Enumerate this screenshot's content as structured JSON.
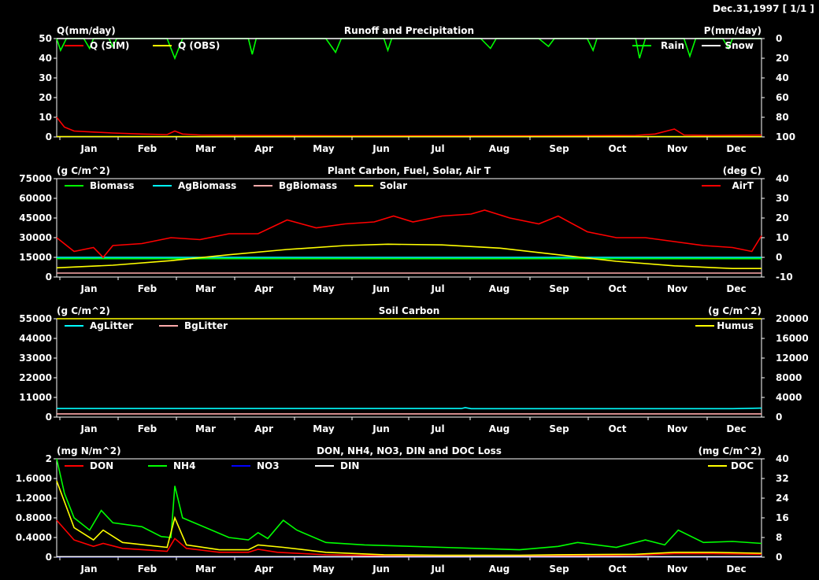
{
  "header": {
    "date_label": "Dec.31,1997 [ 1/1 ]"
  },
  "months": [
    "Jan",
    "Feb",
    "Mar",
    "Apr",
    "May",
    "Jun",
    "Jul",
    "Aug",
    "Sep",
    "Oct",
    "Nov",
    "Dec"
  ],
  "colors": {
    "background": "#000000",
    "frame": "#ffffff",
    "red": "#ff0000",
    "green": "#00ff00",
    "yellow": "#ffff00",
    "white": "#ffffff",
    "cyan": "#00ffff",
    "pink": "#ffaaaa",
    "blue": "#0000ff"
  },
  "chart_data": [
    {
      "type": "line",
      "title": "Runoff and Precipitation",
      "ylabel_left": "Q(mm/day)",
      "ylabel_right": "P(mm/day)",
      "ylim_left": [
        0,
        50
      ],
      "yticks_left": [
        "0",
        "10",
        "20",
        "30",
        "40",
        "50"
      ],
      "ylim_right": [
        100,
        0
      ],
      "yticks_right": [
        "100",
        "80",
        "60",
        "40",
        "20",
        "0"
      ],
      "right_axis_inverted": true,
      "series": [
        {
          "name": "Q (SIM)",
          "axis": "left",
          "color": "#ff0000",
          "points": [
            [
              1,
              10
            ],
            [
              5,
              5
            ],
            [
              10,
              3
            ],
            [
              20,
              2.5
            ],
            [
              30,
              2
            ],
            [
              45,
              1.5
            ],
            [
              58,
              1.2
            ],
            [
              62,
              3
            ],
            [
              66,
              1.5
            ],
            [
              75,
              1
            ],
            [
              100,
              0.8
            ],
            [
              150,
              0.6
            ],
            [
              200,
              0.6
            ],
            [
              250,
              0.6
            ],
            [
              280,
              0.7
            ],
            [
              300,
              0.8
            ],
            [
              310,
              1.5
            ],
            [
              320,
              4
            ],
            [
              325,
              1
            ],
            [
              340,
              0.8
            ],
            [
              365,
              1
            ]
          ]
        },
        {
          "name": "Q (OBS)",
          "axis": "left",
          "color": "#ffff00",
          "points": [
            [
              1,
              0.2
            ],
            [
              365,
              0.2
            ]
          ]
        },
        {
          "name": "Rain",
          "axis": "right",
          "color": "#00ff00",
          "points": [
            [
              1,
              0
            ],
            [
              3,
              12
            ],
            [
              6,
              0
            ],
            [
              15,
              0
            ],
            [
              18,
              10
            ],
            [
              20,
              0
            ],
            [
              28,
              0
            ],
            [
              30,
              8
            ],
            [
              32,
              0
            ],
            [
              55,
              0
            ],
            [
              58,
              0
            ],
            [
              62,
              20
            ],
            [
              66,
              0
            ],
            [
              70,
              0
            ],
            [
              100,
              0
            ],
            [
              102,
              16
            ],
            [
              104,
              0
            ],
            [
              120,
              0
            ],
            [
              140,
              0
            ],
            [
              145,
              14
            ],
            [
              148,
              0
            ],
            [
              170,
              0
            ],
            [
              172,
              12
            ],
            [
              174,
              0
            ],
            [
              220,
              0
            ],
            [
              225,
              10
            ],
            [
              228,
              0
            ],
            [
              250,
              0
            ],
            [
              255,
              8
            ],
            [
              258,
              0
            ],
            [
              275,
              0
            ],
            [
              278,
              12
            ],
            [
              280,
              0
            ],
            [
              300,
              0
            ],
            [
              302,
              20
            ],
            [
              305,
              0
            ],
            [
              325,
              0
            ],
            [
              328,
              18
            ],
            [
              331,
              0
            ],
            [
              345,
              0
            ],
            [
              348,
              10
            ],
            [
              350,
              0
            ],
            [
              365,
              0
            ]
          ]
        },
        {
          "name": "Snow",
          "axis": "right",
          "color": "#ffffff",
          "points": [
            [
              1,
              0
            ],
            [
              365,
              0
            ]
          ]
        }
      ]
    },
    {
      "type": "line",
      "title": "Plant Carbon, Fuel, Solar, Air T",
      "ylabel_left": "(g C/m^2)",
      "ylabel_right": "(deg C)",
      "ylim_left": [
        0,
        75000
      ],
      "yticks_left": [
        "0",
        "15000",
        "30000",
        "45000",
        "60000",
        "75000"
      ],
      "ylim_right": [
        -10,
        40
      ],
      "yticks_right": [
        "-10",
        "0",
        "10",
        "20",
        "30",
        "40"
      ],
      "series": [
        {
          "name": "Biomass",
          "axis": "left",
          "color": "#00ff00",
          "points": [
            [
              1,
              14000
            ],
            [
              365,
              14000
            ]
          ]
        },
        {
          "name": "AgBiomass",
          "axis": "left",
          "color": "#00ffff",
          "points": [
            [
              1,
              15000
            ],
            [
              365,
              15000
            ]
          ]
        },
        {
          "name": "BgBiomass",
          "axis": "left",
          "color": "#ffaaaa",
          "points": [
            [
              1,
              3000
            ],
            [
              365,
              3000
            ]
          ]
        },
        {
          "name": "Solar",
          "axis": "left",
          "color": "#ffff00",
          "points": [
            [
              1,
              7000
            ],
            [
              30,
              9000
            ],
            [
              60,
              12500
            ],
            [
              90,
              17000
            ],
            [
              120,
              21000
            ],
            [
              150,
              24000
            ],
            [
              172,
              25000
            ],
            [
              200,
              24500
            ],
            [
              230,
              22000
            ],
            [
              260,
              17000
            ],
            [
              290,
              12000
            ],
            [
              320,
              8500
            ],
            [
              350,
              6500
            ],
            [
              365,
              6500
            ]
          ]
        },
        {
          "name": "AirT",
          "axis": "right",
          "color": "#ff0000",
          "points": [
            [
              1,
              10
            ],
            [
              10,
              3
            ],
            [
              20,
              5
            ],
            [
              25,
              0
            ],
            [
              30,
              6
            ],
            [
              45,
              7
            ],
            [
              60,
              10
            ],
            [
              75,
              9
            ],
            [
              90,
              12
            ],
            [
              105,
              12
            ],
            [
              120,
              19
            ],
            [
              135,
              15
            ],
            [
              150,
              17
            ],
            [
              165,
              18
            ],
            [
              175,
              21
            ],
            [
              185,
              18
            ],
            [
              200,
              21
            ],
            [
              215,
              22
            ],
            [
              222,
              24
            ],
            [
              235,
              20
            ],
            [
              250,
              17
            ],
            [
              260,
              21
            ],
            [
              275,
              13
            ],
            [
              290,
              10
            ],
            [
              305,
              10
            ],
            [
              320,
              8
            ],
            [
              335,
              6
            ],
            [
              350,
              5
            ],
            [
              360,
              3
            ],
            [
              365,
              11
            ]
          ]
        }
      ]
    },
    {
      "type": "line",
      "title": "Soil Carbon",
      "ylabel_left": "(g C/m^2)",
      "ylabel_right": "(g C/m^2)",
      "ylim_left": [
        0,
        55000
      ],
      "yticks_left": [
        "0",
        "11000",
        "22000",
        "33000",
        "44000",
        "55000"
      ],
      "ylim_right": [
        0,
        20000
      ],
      "yticks_right": [
        "0",
        "4000",
        "8000",
        "12000",
        "16000",
        "20000"
      ],
      "series": [
        {
          "name": "AgLitter",
          "axis": "left",
          "color": "#00ffff",
          "points": [
            [
              1,
              4800
            ],
            [
              210,
              4800
            ],
            [
              212,
              5300
            ],
            [
              215,
              4700
            ],
            [
              350,
              4700
            ],
            [
              365,
              5000
            ]
          ]
        },
        {
          "name": "BgLitter",
          "axis": "left",
          "color": "#ffaaaa",
          "points": [
            [
              1,
              1800
            ],
            [
              365,
              1800
            ]
          ]
        },
        {
          "name": "Humus",
          "axis": "right",
          "color": "#ffff00",
          "points": [
            [
              1,
              20050
            ],
            [
              150,
              20100
            ],
            [
              300,
              20250
            ],
            [
              365,
              20300
            ]
          ]
        }
      ]
    },
    {
      "type": "line",
      "title": "DON, NH4, NO3, DIN and DOC Loss",
      "ylabel_left": "(mg N/m^2)",
      "ylabel_right": "(mg C/m^2)",
      "ylim_left": [
        0,
        2
      ],
      "yticks_left": [
        "0",
        "0.4000",
        "0.8000",
        "1.2000",
        "1.6000",
        "2"
      ],
      "ylim_right": [
        0,
        40
      ],
      "yticks_right": [
        "0",
        "8",
        "16",
        "24",
        "32",
        "40"
      ],
      "series": [
        {
          "name": "DON",
          "axis": "left",
          "color": "#ff0000",
          "points": [
            [
              1,
              0.75
            ],
            [
              10,
              0.35
            ],
            [
              20,
              0.22
            ],
            [
              25,
              0.28
            ],
            [
              35,
              0.18
            ],
            [
              58,
              0.12
            ],
            [
              62,
              0.38
            ],
            [
              68,
              0.18
            ],
            [
              85,
              0.1
            ],
            [
              100,
              0.1
            ],
            [
              105,
              0.16
            ],
            [
              115,
              0.1
            ],
            [
              140,
              0.05
            ],
            [
              170,
              0.03
            ],
            [
              200,
              0.02
            ],
            [
              230,
              0.02
            ],
            [
              260,
              0.03
            ],
            [
              300,
              0.04
            ],
            [
              320,
              0.07
            ],
            [
              340,
              0.07
            ],
            [
              365,
              0.06
            ]
          ]
        },
        {
          "name": "NH4",
          "axis": "left",
          "color": "#00ff00",
          "points": [
            [
              1,
              2
            ],
            [
              5,
              1.3
            ],
            [
              10,
              0.8
            ],
            [
              18,
              0.55
            ],
            [
              24,
              0.95
            ],
            [
              30,
              0.7
            ],
            [
              45,
              0.62
            ],
            [
              55,
              0.42
            ],
            [
              60,
              0.4
            ],
            [
              62,
              1.45
            ],
            [
              66,
              0.8
            ],
            [
              75,
              0.65
            ],
            [
              90,
              0.4
            ],
            [
              100,
              0.35
            ],
            [
              105,
              0.5
            ],
            [
              110,
              0.38
            ],
            [
              118,
              0.75
            ],
            [
              125,
              0.55
            ],
            [
              140,
              0.3
            ],
            [
              160,
              0.25
            ],
            [
              200,
              0.2
            ],
            [
              240,
              0.15
            ],
            [
              260,
              0.22
            ],
            [
              270,
              0.3
            ],
            [
              290,
              0.2
            ],
            [
              305,
              0.35
            ],
            [
              315,
              0.25
            ],
            [
              322,
              0.55
            ],
            [
              335,
              0.3
            ],
            [
              350,
              0.32
            ],
            [
              365,
              0.28
            ]
          ]
        },
        {
          "name": "NO3",
          "axis": "left",
          "color": "#0000ff",
          "points": [
            [
              1,
              0.005
            ],
            [
              365,
              0.005
            ]
          ]
        },
        {
          "name": "DIN",
          "axis": "left",
          "color": "#ffffff",
          "points": [
            [
              1,
              0.01
            ],
            [
              365,
              0.01
            ]
          ]
        },
        {
          "name": "DOC",
          "axis": "right",
          "color": "#ffff00",
          "points": [
            [
              1,
              31
            ],
            [
              10,
              12
            ],
            [
              20,
              7
            ],
            [
              25,
              11
            ],
            [
              35,
              6
            ],
            [
              58,
              4
            ],
            [
              62,
              16
            ],
            [
              68,
              5
            ],
            [
              85,
              3
            ],
            [
              100,
              3
            ],
            [
              105,
              5
            ],
            [
              118,
              4
            ],
            [
              140,
              2
            ],
            [
              170,
              1
            ],
            [
              200,
              0.8
            ],
            [
              240,
              0.8
            ],
            [
              260,
              1
            ],
            [
              300,
              1.2
            ],
            [
              320,
              2
            ],
            [
              340,
              2
            ],
            [
              365,
              1.6
            ]
          ]
        }
      ]
    }
  ]
}
